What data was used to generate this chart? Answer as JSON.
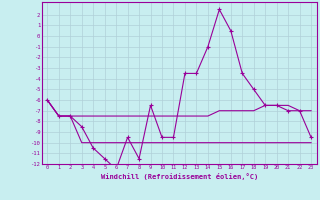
{
  "xlabel": "Windchill (Refroidissement éolien,°C)",
  "x": [
    0,
    1,
    2,
    3,
    4,
    5,
    6,
    7,
    8,
    9,
    10,
    11,
    12,
    13,
    14,
    15,
    16,
    17,
    18,
    19,
    20,
    21,
    22,
    23
  ],
  "line1": [
    -6.0,
    -7.5,
    -7.5,
    -8.5,
    -10.5,
    -11.5,
    -12.5,
    -9.5,
    -11.5,
    -6.5,
    -9.5,
    -9.5,
    -3.5,
    -3.5,
    -1.0,
    2.5,
    0.5,
    -3.5,
    -5.0,
    -6.5,
    -6.5,
    -7.0,
    -7.0,
    -9.5
  ],
  "line2": [
    -6.0,
    -7.5,
    -7.5,
    -10.0,
    -10.0,
    -10.0,
    -10.0,
    -10.0,
    -10.0,
    -10.0,
    -10.0,
    -10.0,
    -10.0,
    -10.0,
    -10.0,
    -10.0,
    -10.0,
    -10.0,
    -10.0,
    -10.0,
    -10.0,
    -10.0,
    -10.0,
    -10.0
  ],
  "line3": [
    -6.0,
    -7.5,
    -7.5,
    -7.5,
    -7.5,
    -7.5,
    -7.5,
    -7.5,
    -7.5,
    -7.5,
    -7.5,
    -7.5,
    -7.5,
    -7.5,
    -7.5,
    -7.0,
    -7.0,
    -7.0,
    -7.0,
    -6.5,
    -6.5,
    -6.5,
    -7.0,
    -7.0
  ],
  "line_color": "#990099",
  "bg_color": "#c8eef0",
  "grid_color": "#b0d0d8",
  "ylim": [
    -12,
    3
  ],
  "yticks": [
    2,
    1,
    0,
    -1,
    -2,
    -3,
    -4,
    -5,
    -6,
    -7,
    -8,
    -9,
    -10,
    -11,
    -12
  ],
  "xticks": [
    0,
    1,
    2,
    3,
    4,
    5,
    6,
    7,
    8,
    9,
    10,
    11,
    12,
    13,
    14,
    15,
    16,
    17,
    18,
    19,
    20,
    21,
    22,
    23
  ]
}
